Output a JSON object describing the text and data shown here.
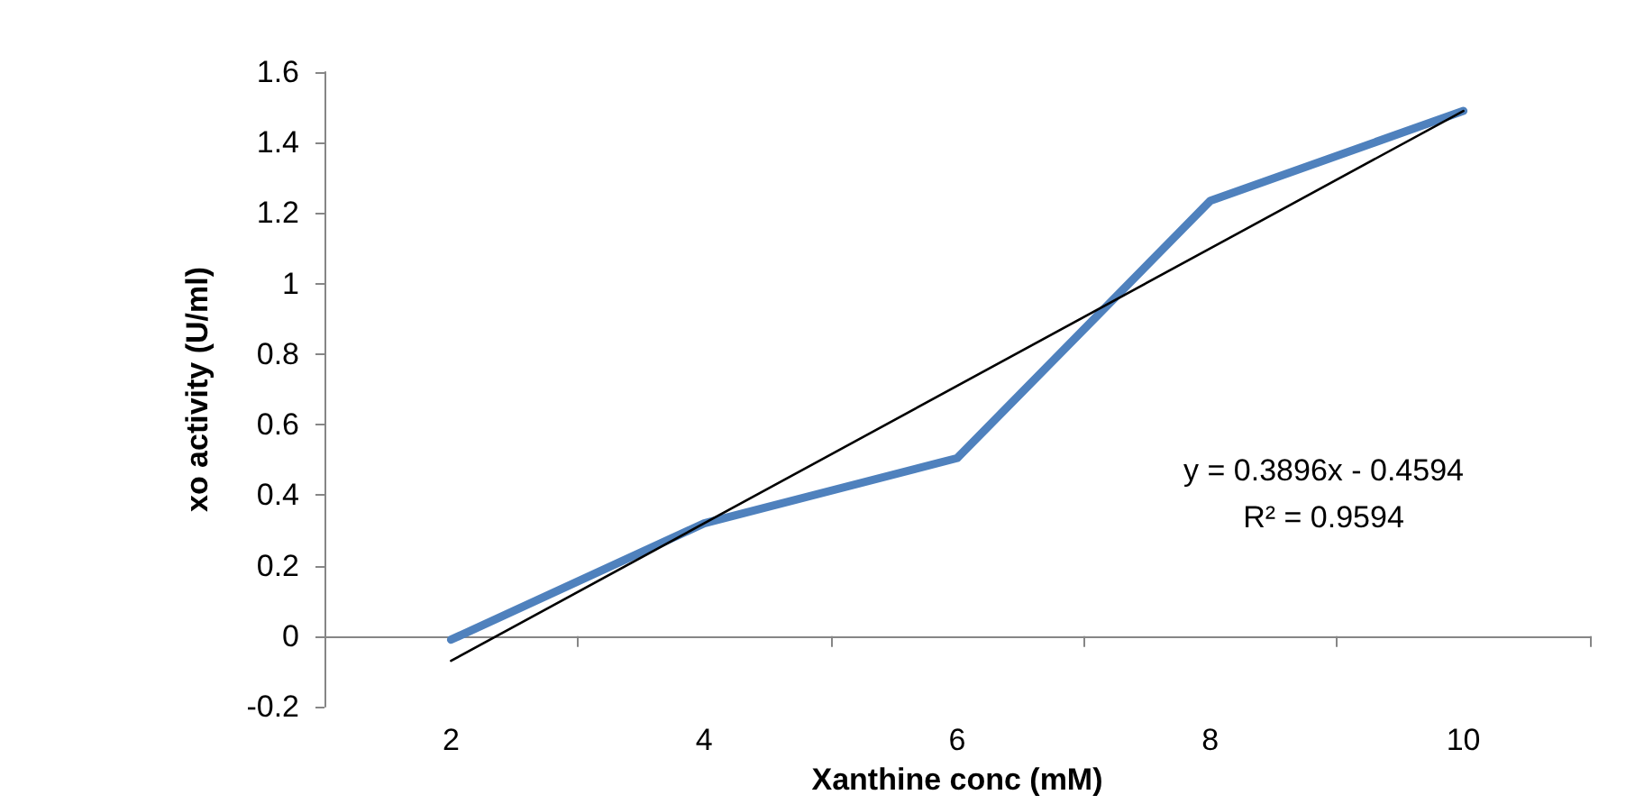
{
  "chart_data": {
    "type": "line",
    "xlabel": "Xanthine conc (mM)",
    "ylabel": "xo activity (U/ml)",
    "categories": [
      "2",
      "4",
      "6",
      "8",
      "10"
    ],
    "series": [
      {
        "color": "#4f81bd",
        "values": [
          -0.01,
          0.32,
          0.505,
          1.235,
          1.49
        ]
      },
      {
        "type": "line",
        "color": "#000000",
        "x": [
          "2",
          "10"
        ],
        "values": [
          -0.07,
          1.49
        ]
      }
    ],
    "ylim": [
      -0.2,
      1.6
    ],
    "yticks": [
      -0.2,
      0,
      0.2,
      0.4,
      0.6,
      0.8,
      1,
      1.2,
      1.4,
      1.6
    ],
    "marker": "none",
    "annotations": [
      "y = 0.3896x - 0.4594\nR² = 0.9594"
    ]
  }
}
